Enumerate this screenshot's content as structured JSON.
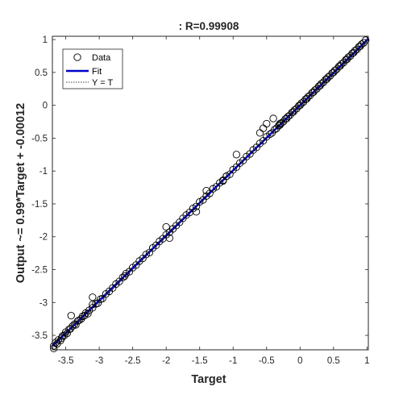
{
  "chart_data": {
    "type": "scatter",
    "title": ": R=0.99908",
    "xlabel": "Target",
    "ylabel": "Output ~= 0.99*Target + -0.00012",
    "xlim": [
      -3.7,
      1.02
    ],
    "ylim": [
      -3.72,
      1.05
    ],
    "xticks": [
      "-3.5",
      "-3",
      "-2.5",
      "-2",
      "-1.5",
      "-1",
      "-0.5",
      "0",
      "0.5",
      "1"
    ],
    "yticks": [
      "1",
      "0.5",
      "0",
      "-0.5",
      "-1",
      "-1.5",
      "-2",
      "-2.5",
      "-3",
      "-3.5"
    ],
    "grid": false,
    "legend_position": "top-left",
    "legend": [
      "Data",
      "Fit",
      "Y = T"
    ],
    "fit": {
      "slope": 0.99,
      "intercept": -0.00012
    },
    "colors": {
      "data": "#000000",
      "fit": "#0000cc",
      "identity": "#000000",
      "axes": "#262626"
    },
    "series": [
      {
        "name": "Data",
        "x": [
          -3.68,
          -3.65,
          -3.63,
          -3.61,
          -3.58,
          -3.56,
          -3.55,
          -3.52,
          -3.5,
          -3.48,
          -3.45,
          -3.43,
          -3.4,
          -3.37,
          -3.35,
          -3.32,
          -3.3,
          -3.27,
          -3.25,
          -3.22,
          -3.2,
          -3.17,
          -3.15,
          -3.1,
          -3.05,
          -3.02,
          -2.98,
          -2.95,
          -2.9,
          -2.85,
          -2.8,
          -2.75,
          -2.7,
          -2.65,
          -2.62,
          -2.6,
          -2.55,
          -2.5,
          -2.45,
          -2.4,
          -2.35,
          -2.3,
          -2.25,
          -2.2,
          -2.15,
          -2.1,
          -2.05,
          -2.0,
          -1.95,
          -1.9,
          -1.85,
          -1.8,
          -1.75,
          -1.7,
          -1.65,
          -1.6,
          -1.55,
          -1.5,
          -1.45,
          -1.4,
          -1.35,
          -1.3,
          -1.25,
          -1.2,
          -1.15,
          -1.1,
          -1.05,
          -1.0,
          -0.95,
          -0.9,
          -0.85,
          -0.8,
          -0.75,
          -0.7,
          -0.65,
          -0.6,
          -0.55,
          -0.5,
          -0.45,
          -0.42,
          -0.38,
          -0.35,
          -0.32,
          -0.3,
          -0.28,
          -0.25,
          -0.22,
          -0.2,
          -0.18,
          -0.15,
          -0.12,
          -0.1,
          -0.08,
          -0.05,
          -0.02,
          0.0,
          0.02,
          0.05,
          0.08,
          0.1,
          0.12,
          0.15,
          0.18,
          0.2,
          0.22,
          0.25,
          0.28,
          0.3,
          0.32,
          0.35,
          0.38,
          0.4,
          0.42,
          0.45,
          0.48,
          0.5,
          0.52,
          0.55,
          0.58,
          0.6,
          0.62,
          0.65,
          0.68,
          0.7,
          0.72,
          0.75,
          0.78,
          0.8,
          0.82,
          0.85,
          0.88,
          0.9,
          0.92,
          0.95,
          0.98,
          -3.68,
          -3.42,
          -3.1,
          -2.0,
          -1.95,
          -1.55,
          -1.4,
          -1.1,
          -0.95,
          -0.6,
          -0.55,
          -0.5,
          -0.4,
          -3.1,
          -1.15,
          -0.3
        ],
        "y": [
          -3.66,
          -3.61,
          -3.63,
          -3.57,
          -3.58,
          -3.54,
          -3.51,
          -3.5,
          -3.45,
          -3.47,
          -3.41,
          -3.4,
          -3.36,
          -3.33,
          -3.34,
          -3.28,
          -3.27,
          -3.25,
          -3.21,
          -3.2,
          -3.16,
          -3.17,
          -3.12,
          -3.08,
          -3.02,
          -3.01,
          -2.95,
          -2.94,
          -2.87,
          -2.83,
          -2.78,
          -2.72,
          -2.68,
          -2.62,
          -2.6,
          -2.56,
          -2.53,
          -2.47,
          -2.43,
          -2.37,
          -2.33,
          -2.27,
          -2.24,
          -2.17,
          -2.13,
          -2.07,
          -2.03,
          -1.97,
          -1.93,
          -1.88,
          -1.83,
          -1.78,
          -1.72,
          -1.67,
          -1.63,
          -1.57,
          -1.54,
          -1.47,
          -1.44,
          -1.38,
          -1.34,
          -1.27,
          -1.24,
          -1.18,
          -1.14,
          -1.08,
          -1.05,
          -0.98,
          -0.94,
          -0.88,
          -0.84,
          -0.78,
          -0.74,
          -0.68,
          -0.64,
          -0.58,
          -0.54,
          -0.48,
          -0.44,
          -0.42,
          -0.37,
          -0.35,
          -0.31,
          -0.3,
          -0.27,
          -0.25,
          -0.21,
          -0.2,
          -0.17,
          -0.15,
          -0.11,
          -0.1,
          -0.07,
          -0.05,
          -0.01,
          0.0,
          0.03,
          0.05,
          0.09,
          0.1,
          0.13,
          0.15,
          0.19,
          0.2,
          0.23,
          0.25,
          0.29,
          0.3,
          0.33,
          0.35,
          0.39,
          0.4,
          0.43,
          0.45,
          0.49,
          0.5,
          0.53,
          0.55,
          0.59,
          0.6,
          0.63,
          0.65,
          0.69,
          0.7,
          0.73,
          0.75,
          0.79,
          0.8,
          0.83,
          0.85,
          0.89,
          0.9,
          0.93,
          0.95,
          0.99,
          -3.7,
          -3.2,
          -3.03,
          -1.85,
          -2.02,
          -1.62,
          -1.3,
          -1.08,
          -0.75,
          -0.42,
          -0.35,
          -0.28,
          -0.2,
          -2.92,
          -1.15,
          -0.28
        ]
      }
    ]
  }
}
